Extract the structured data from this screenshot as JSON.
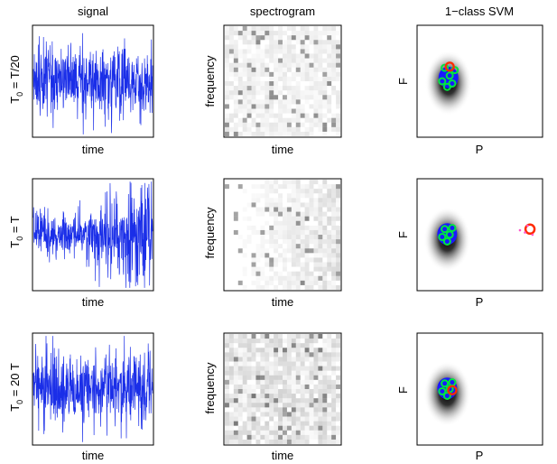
{
  "columns": [
    "signal",
    "spectrogram",
    "1−class SVM"
  ],
  "rows": [
    {
      "label": "T0 = T/20",
      "label_main": "T",
      "label_sub": "0",
      "label_rest": " = T/20",
      "signal_xlabel": "time",
      "spec_xlabel": "time",
      "spec_ylabel": "frequency",
      "svm_xlabel": "P",
      "svm_ylabel": "F"
    },
    {
      "label": "T0 = T",
      "label_main": "T",
      "label_sub": "0",
      "label_rest": " = T",
      "signal_xlabel": "time",
      "spec_xlabel": "time",
      "spec_ylabel": "frequency",
      "svm_xlabel": "P",
      "svm_ylabel": "F"
    },
    {
      "label": "T0 = 20 T",
      "label_main": "T",
      "label_sub": "0",
      "label_rest": " = 20 T",
      "signal_xlabel": "time",
      "spec_xlabel": "time",
      "spec_ylabel": "frequency",
      "svm_xlabel": "P",
      "svm_ylabel": "F"
    }
  ],
  "colors": {
    "signal": "#1a2ee8",
    "train_points": "#00e640",
    "train_outline": "#1a1aff",
    "test_marker": "#ff2a00",
    "test_points": "#ff55cc",
    "decision": "#000000"
  },
  "chart_data": [
    {
      "type": "line",
      "panel": "signal",
      "row": 0,
      "series": [
        {
          "values": []
        }
      ],
      "description_values": "noisy stationary signal, roughly uniform amplitude"
    },
    {
      "type": "heatmap",
      "panel": "spectrogram",
      "row": 0
    },
    {
      "type": "scatter",
      "panel": "svm",
      "row": 0,
      "series": [
        {
          "values": [
            [
              0.22,
              0.62
            ],
            [
              0.26,
              0.55
            ],
            [
              0.2,
              0.5
            ],
            [
              0.3,
              0.6
            ],
            [
              0.28,
              0.48
            ],
            [
              0.24,
              0.45
            ]
          ]
        },
        {
          "values": [
            [
              0.26,
              0.63
            ]
          ]
        }
      ]
    },
    {
      "type": "line",
      "panel": "signal",
      "row": 1,
      "series": [
        {
          "values": []
        }
      ]
    },
    {
      "type": "heatmap",
      "panel": "spectrogram",
      "row": 1
    },
    {
      "type": "scatter",
      "panel": "svm",
      "row": 1,
      "series": [
        {
          "values": [
            [
              0.22,
              0.55
            ],
            [
              0.26,
              0.5
            ],
            [
              0.2,
              0.48
            ],
            [
              0.28,
              0.56
            ],
            [
              0.24,
              0.44
            ]
          ]
        },
        {
          "values": [
            [
              0.9,
              0.55
            ],
            [
              0.86,
              0.52
            ],
            [
              0.92,
              0.5
            ],
            [
              0.88,
              0.58
            ],
            [
              0.82,
              0.54
            ]
          ]
        }
      ]
    },
    {
      "type": "line",
      "panel": "signal",
      "row": 2,
      "series": [
        {
          "values": []
        }
      ]
    },
    {
      "type": "heatmap",
      "panel": "spectrogram",
      "row": 2
    },
    {
      "type": "scatter",
      "panel": "svm",
      "row": 2,
      "series": [
        {
          "values": [
            [
              0.22,
              0.55
            ],
            [
              0.26,
              0.5
            ],
            [
              0.2,
              0.48
            ],
            [
              0.28,
              0.56
            ],
            [
              0.24,
              0.44
            ]
          ]
        },
        {
          "values": [
            [
              0.28,
              0.49
            ]
          ]
        }
      ]
    }
  ]
}
